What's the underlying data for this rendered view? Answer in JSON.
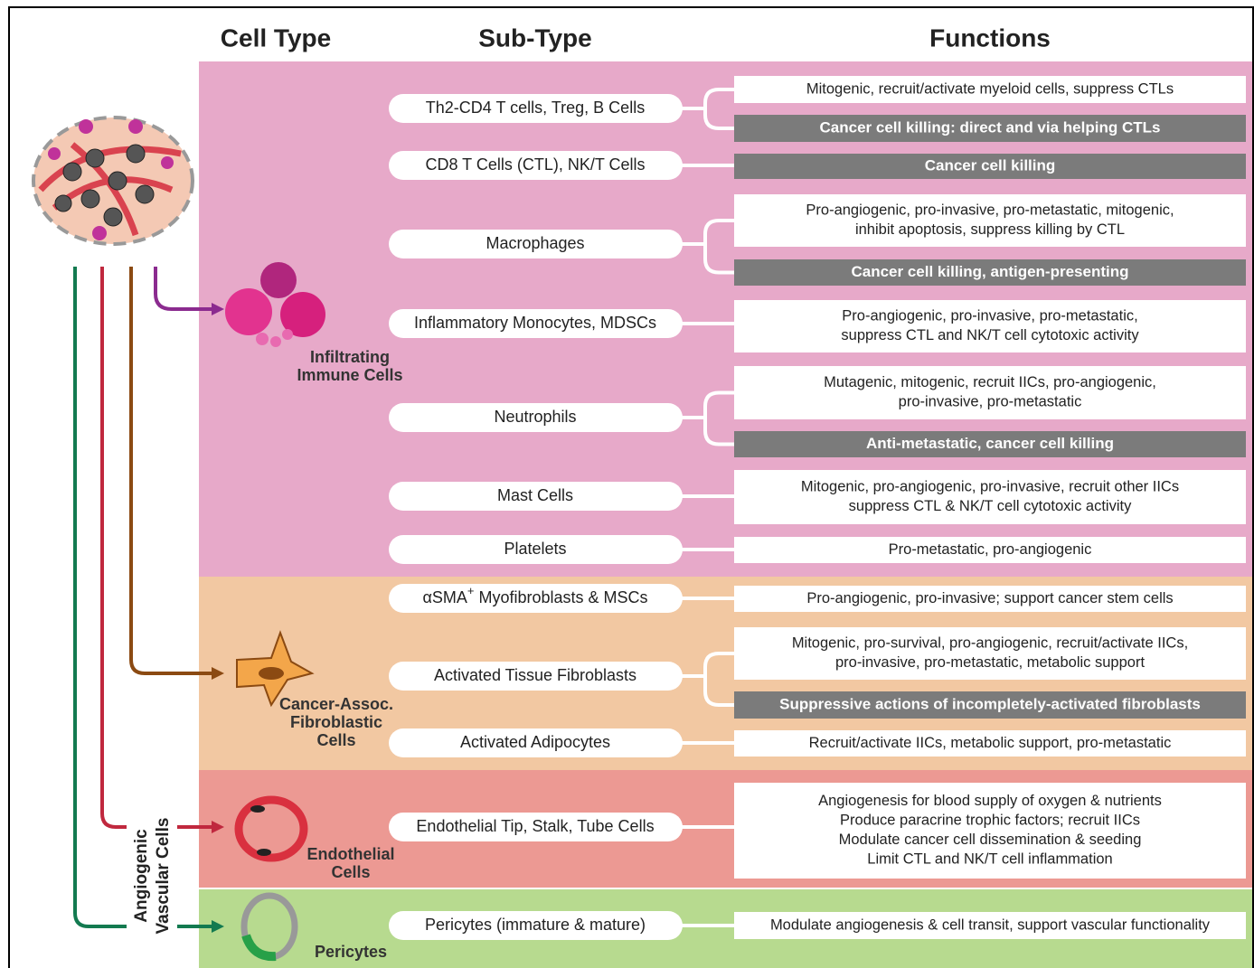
{
  "headers": {
    "cell_type": "Cell Type",
    "sub_type": "Sub-Type",
    "functions": "Functions"
  },
  "side_label": [
    "Angiogenic",
    "Vascular Cells"
  ],
  "groups": [
    {
      "label": [
        "Infiltrating",
        "Immune Cells"
      ],
      "subtypes": [
        {
          "name": "Th2-CD4 T cells, Treg, B Cells",
          "functions": [
            {
              "lines": [
                "Mitogenic, recruit/activate myeloid cells, suppress CTLs"
              ],
              "highlight": false
            },
            {
              "lines": [
                "Cancer cell killing: direct and via helping CTLs"
              ],
              "highlight": true
            }
          ]
        },
        {
          "name": "CD8 T Cells (CTL), NK/T Cells",
          "functions": [
            {
              "lines": [
                "Cancer cell killing"
              ],
              "highlight": true
            }
          ]
        },
        {
          "name": "Macrophages",
          "functions": [
            {
              "lines": [
                "Pro-angiogenic, pro-invasive, pro-metastatic, mitogenic,",
                "inhibit apoptosis, suppress killing by CTL"
              ],
              "highlight": false
            },
            {
              "lines": [
                "Cancer cell killing, antigen-presenting"
              ],
              "highlight": true
            }
          ]
        },
        {
          "name": "Inflammatory Monocytes, MDSCs",
          "functions": [
            {
              "lines": [
                "Pro-angiogenic, pro-invasive, pro-metastatic,",
                "suppress CTL and NK/T cell cytotoxic activity"
              ],
              "highlight": false
            }
          ]
        },
        {
          "name": "Neutrophils",
          "functions": [
            {
              "lines": [
                "Mutagenic, mitogenic, recruit IICs, pro-angiogenic,",
                "pro-invasive, pro-metastatic"
              ],
              "highlight": false
            },
            {
              "lines": [
                "Anti-metastatic, cancer cell killing"
              ],
              "highlight": true
            }
          ]
        },
        {
          "name": "Mast Cells",
          "functions": [
            {
              "lines": [
                "Mitogenic, pro-angiogenic, pro-invasive, recruit other IICs",
                "suppress CTL & NK/T cell cytotoxic activity"
              ],
              "highlight": false
            }
          ]
        },
        {
          "name": "Platelets",
          "functions": [
            {
              "lines": [
                "Pro-metastatic, pro-angiogenic"
              ],
              "highlight": false
            }
          ]
        }
      ]
    },
    {
      "label": [
        "Cancer-Assoc.",
        "Fibroblastic",
        "Cells"
      ],
      "subtypes": [
        {
          "name": [
            "αSMA",
            "+",
            " Myofibroblasts & MSCs"
          ],
          "functions": [
            {
              "lines": [
                "Pro-angiogenic, pro-invasive; support cancer stem cells"
              ],
              "highlight": false
            }
          ]
        },
        {
          "name": "Activated Tissue Fibroblasts",
          "functions": [
            {
              "lines": [
                "Mitogenic, pro-survival, pro-angiogenic, recruit/activate IICs,",
                "pro-invasive, pro-metastatic, metabolic support"
              ],
              "highlight": false
            },
            {
              "lines": [
                "Suppressive actions of incompletely-activated fibroblasts"
              ],
              "highlight": true
            }
          ]
        },
        {
          "name": "Activated Adipocytes",
          "functions": [
            {
              "lines": [
                "Recruit/activate IICs, metabolic support, pro-metastatic"
              ],
              "highlight": false
            }
          ]
        }
      ]
    },
    {
      "label": [
        "Endothelial",
        "Cells"
      ],
      "subtypes": [
        {
          "name": "Endothelial Tip, Stalk, Tube Cells",
          "functions": [
            {
              "lines": [
                "Angiogenesis for blood supply of oxygen & nutrients",
                "Produce paracrine trophic factors; recruit IICs",
                "Modulate cancer cell dissemination & seeding",
                "Limit CTL and NK/T cell inflammation"
              ],
              "highlight": false
            }
          ]
        }
      ]
    },
    {
      "label": [
        "Pericytes"
      ],
      "subtypes": [
        {
          "name": "Pericytes (immature & mature)",
          "functions": [
            {
              "lines": [
                "Modulate angiogenesis & cell transit, support vascular functionality"
              ],
              "highlight": false
            }
          ]
        }
      ]
    }
  ]
}
